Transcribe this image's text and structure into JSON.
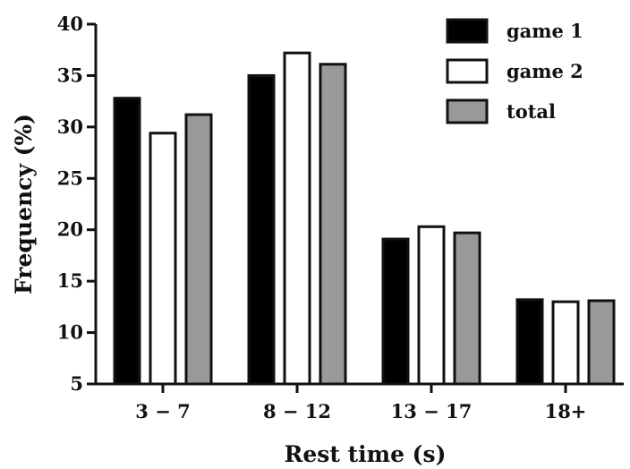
{
  "chart_data": {
    "type": "bar",
    "xlabel": "Rest time (s)",
    "ylabel": "Frequency (%)",
    "ylim": [
      5,
      40
    ],
    "yticks": [
      5,
      10,
      15,
      20,
      25,
      30,
      35,
      40
    ],
    "categories": [
      "3 − 7",
      "8 − 12",
      "13 − 17",
      "18+"
    ],
    "series": [
      {
        "name": "game 1",
        "fill": "#000000",
        "values": [
          32.8,
          35.0,
          19.1,
          13.2
        ]
      },
      {
        "name": "game 2",
        "fill": "#ffffff",
        "values": [
          29.4,
          37.2,
          20.3,
          13.0
        ]
      },
      {
        "name": "total",
        "fill": "#999999",
        "values": [
          31.2,
          36.1,
          19.7,
          13.1
        ]
      }
    ],
    "legend_position": "top-right",
    "grid": false
  }
}
